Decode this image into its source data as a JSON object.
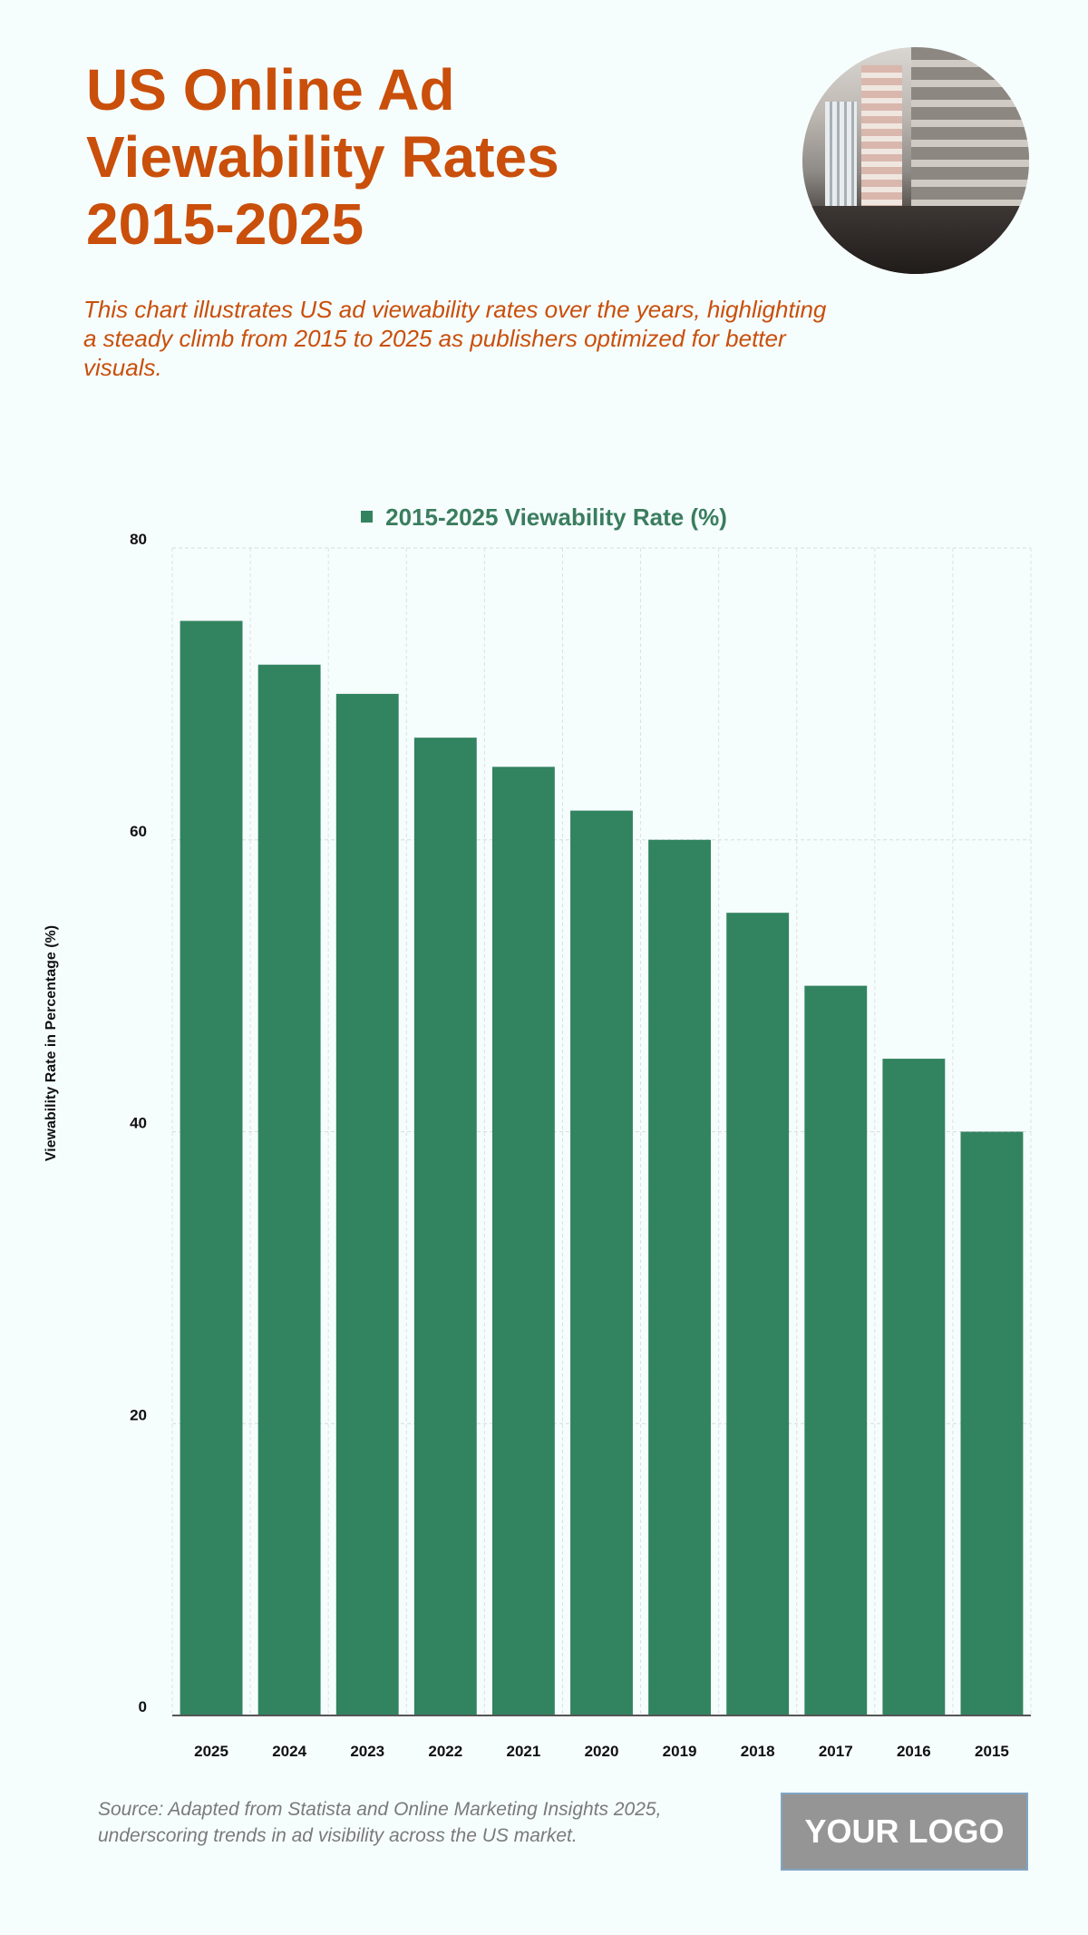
{
  "header": {
    "title_lines": [
      "US Online Ad",
      "Viewability Rates",
      "2015-2025"
    ],
    "subtitle": "This chart illustrates US ad viewability rates over the years, highlighting a steady climb from 2015 to 2025 as publishers optimized for better visuals."
  },
  "footer": {
    "source": "Source: Adapted from Statista and Online Marketing Insights 2025, underscoring trends in ad visibility across the US market.",
    "logo": "YOUR LOGO"
  },
  "colors": {
    "title": "#c94f0b",
    "bar": "#32835f",
    "legend_text": "#3a7d5f"
  },
  "chart_data": {
    "type": "bar",
    "title": "",
    "legend": [
      "2015-2025 Viewability Rate (%)"
    ],
    "legend_position": "top-center",
    "categories": [
      "2025",
      "2024",
      "2023",
      "2022",
      "2021",
      "2020",
      "2019",
      "2018",
      "2017",
      "2016",
      "2015"
    ],
    "series": [
      {
        "name": "2015-2025 Viewability Rate (%)",
        "values": [
          75,
          72,
          70,
          67,
          65,
          62,
          60,
          55,
          50,
          45,
          40
        ]
      }
    ],
    "xlabel": "",
    "ylabel": "Viewability Rate in Percentage (%)",
    "ylim": [
      0,
      80
    ],
    "yticks": [
      0,
      20,
      40,
      60,
      80
    ],
    "grid": true
  }
}
